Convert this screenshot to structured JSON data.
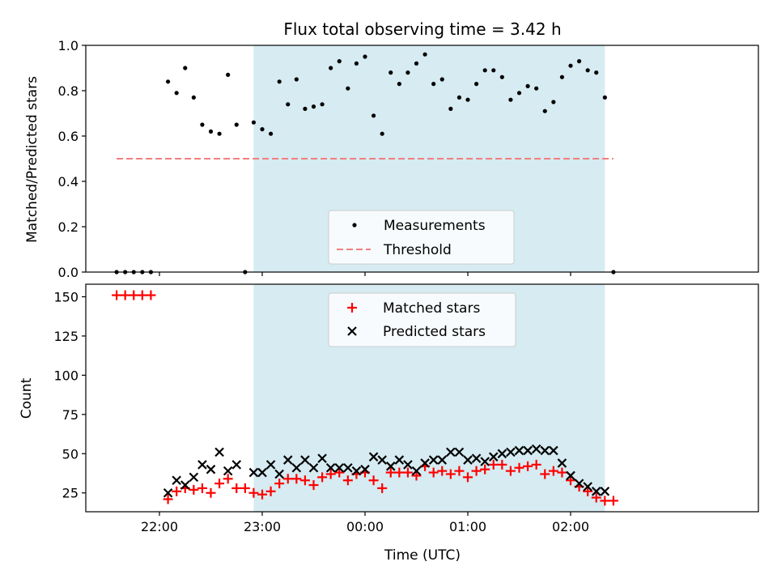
{
  "chart_data": [
    {
      "type": "scatter",
      "title": "Flux total observing time = 3.42 h",
      "xlabel": "",
      "ylabel": "Matched/Predicted stars",
      "ylim": [
        0,
        1.0
      ],
      "yticks": [
        "0.0",
        "0.2",
        "0.4",
        "0.6",
        "0.8",
        "1.0"
      ],
      "shaded_interval": [
        "22:55",
        "02:20"
      ],
      "shade_color": "#add8e6",
      "legend_position": "lower-center",
      "series": [
        {
          "name": "Measurements",
          "style": "black-dots",
          "color": "#000000",
          "points": [
            [
              "21:35",
              0.0
            ],
            [
              "21:40",
              0.0
            ],
            [
              "21:45",
              0.0
            ],
            [
              "21:50",
              0.0
            ],
            [
              "21:55",
              0.0
            ],
            [
              "22:05",
              0.84
            ],
            [
              "22:10",
              0.79
            ],
            [
              "22:15",
              0.9
            ],
            [
              "22:20",
              0.77
            ],
            [
              "22:25",
              0.65
            ],
            [
              "22:30",
              0.62
            ],
            [
              "22:35",
              0.61
            ],
            [
              "22:40",
              0.87
            ],
            [
              "22:45",
              0.65
            ],
            [
              "22:50",
              0.0
            ],
            [
              "22:55",
              0.66
            ],
            [
              "23:00",
              0.63
            ],
            [
              "23:05",
              0.61
            ],
            [
              "23:10",
              0.84
            ],
            [
              "23:15",
              0.74
            ],
            [
              "23:20",
              0.85
            ],
            [
              "23:25",
              0.72
            ],
            [
              "23:30",
              0.73
            ],
            [
              "23:35",
              0.74
            ],
            [
              "23:40",
              0.9
            ],
            [
              "23:45",
              0.93
            ],
            [
              "23:50",
              0.81
            ],
            [
              "23:55",
              0.92
            ],
            [
              "00:00",
              0.95
            ],
            [
              "00:05",
              0.69
            ],
            [
              "00:10",
              0.61
            ],
            [
              "00:15",
              0.88
            ],
            [
              "00:20",
              0.83
            ],
            [
              "00:25",
              0.88
            ],
            [
              "00:30",
              0.92
            ],
            [
              "00:35",
              0.96
            ],
            [
              "00:40",
              0.83
            ],
            [
              "00:45",
              0.85
            ],
            [
              "00:50",
              0.72
            ],
            [
              "00:55",
              0.77
            ],
            [
              "01:00",
              0.76
            ],
            [
              "01:05",
              0.83
            ],
            [
              "01:10",
              0.89
            ],
            [
              "01:15",
              0.89
            ],
            [
              "01:20",
              0.86
            ],
            [
              "01:25",
              0.76
            ],
            [
              "01:30",
              0.79
            ],
            [
              "01:35",
              0.82
            ],
            [
              "01:40",
              0.81
            ],
            [
              "01:45",
              0.71
            ],
            [
              "01:50",
              0.75
            ],
            [
              "01:55",
              0.86
            ],
            [
              "02:00",
              0.91
            ],
            [
              "02:05",
              0.93
            ],
            [
              "02:10",
              0.89
            ],
            [
              "02:15",
              0.88
            ],
            [
              "02:20",
              0.77
            ],
            [
              "02:25",
              0.0
            ]
          ]
        },
        {
          "name": "Threshold",
          "style": "dashed-line",
          "color": "#f08080",
          "points": [
            [
              "21:35",
              0.5
            ],
            [
              "02:25",
              0.5
            ]
          ]
        }
      ]
    },
    {
      "type": "scatter",
      "xlabel": "Time (UTC)",
      "ylabel": "Count",
      "ylim": [
        13,
        158
      ],
      "yticks": [
        "25",
        "50",
        "75",
        "100",
        "125",
        "150"
      ],
      "xticks": [
        "22:00",
        "23:00",
        "00:00",
        "01:00",
        "02:00"
      ],
      "shaded_interval": [
        "22:55",
        "02:20"
      ],
      "legend_position": "upper-center",
      "series": [
        {
          "name": "Matched stars",
          "style": "plus",
          "color": "#ff0000",
          "points": [
            [
              "21:35",
              151
            ],
            [
              "21:40",
              151
            ],
            [
              "21:45",
              151
            ],
            [
              "21:50",
              151
            ],
            [
              "21:55",
              151
            ],
            [
              "22:05",
              21
            ],
            [
              "22:10",
              26
            ],
            [
              "22:15",
              28
            ],
            [
              "22:20",
              27
            ],
            [
              "22:25",
              28
            ],
            [
              "22:30",
              25
            ],
            [
              "22:35",
              31
            ],
            [
              "22:40",
              34
            ],
            [
              "22:45",
              28
            ],
            [
              "22:50",
              28
            ],
            [
              "22:55",
              25
            ],
            [
              "23:00",
              24
            ],
            [
              "23:05",
              26
            ],
            [
              "23:10",
              31
            ],
            [
              "23:15",
              34
            ],
            [
              "23:20",
              34
            ],
            [
              "23:25",
              33
            ],
            [
              "23:30",
              30
            ],
            [
              "23:35",
              35
            ],
            [
              "23:40",
              37
            ],
            [
              "23:45",
              38
            ],
            [
              "23:50",
              33
            ],
            [
              "23:55",
              37
            ],
            [
              "00:00",
              38
            ],
            [
              "00:05",
              33
            ],
            [
              "00:10",
              28
            ],
            [
              "00:15",
              38
            ],
            [
              "00:20",
              38
            ],
            [
              "00:25",
              38
            ],
            [
              "00:30",
              36
            ],
            [
              "00:35",
              42
            ],
            [
              "00:40",
              38
            ],
            [
              "00:45",
              39
            ],
            [
              "00:50",
              37
            ],
            [
              "00:55",
              39
            ],
            [
              "01:00",
              35
            ],
            [
              "01:05",
              39
            ],
            [
              "01:10",
              40
            ],
            [
              "01:15",
              43
            ],
            [
              "01:20",
              43
            ],
            [
              "01:25",
              39
            ],
            [
              "01:30",
              41
            ],
            [
              "01:35",
              42
            ],
            [
              "01:40",
              43
            ],
            [
              "01:45",
              37
            ],
            [
              "01:50",
              39
            ],
            [
              "01:55",
              38
            ],
            [
              "02:00",
              33
            ],
            [
              "02:05",
              29
            ],
            [
              "02:10",
              26
            ],
            [
              "02:15",
              22
            ],
            [
              "02:20",
              20
            ],
            [
              "02:25",
              20
            ]
          ]
        },
        {
          "name": "Predicted stars",
          "style": "x",
          "color": "#000000",
          "points": [
            [
              "22:05",
              25
            ],
            [
              "22:10",
              33
            ],
            [
              "22:15",
              30
            ],
            [
              "22:20",
              35
            ],
            [
              "22:25",
              43
            ],
            [
              "22:30",
              40
            ],
            [
              "22:35",
              51
            ],
            [
              "22:40",
              39
            ],
            [
              "22:45",
              43
            ],
            [
              "22:55",
              38
            ],
            [
              "23:00",
              38
            ],
            [
              "23:05",
              43
            ],
            [
              "23:10",
              37
            ],
            [
              "23:15",
              46
            ],
            [
              "23:20",
              41
            ],
            [
              "23:25",
              46
            ],
            [
              "23:30",
              41
            ],
            [
              "23:35",
              47
            ],
            [
              "23:40",
              41
            ],
            [
              "23:45",
              41
            ],
            [
              "23:50",
              41
            ],
            [
              "23:55",
              39
            ],
            [
              "00:00",
              40
            ],
            [
              "00:05",
              48
            ],
            [
              "00:10",
              46
            ],
            [
              "00:15",
              42
            ],
            [
              "00:20",
              46
            ],
            [
              "00:25",
              43
            ],
            [
              "00:30",
              39
            ],
            [
              "00:35",
              44
            ],
            [
              "00:40",
              46
            ],
            [
              "00:45",
              46
            ],
            [
              "00:50",
              51
            ],
            [
              "00:55",
              51
            ],
            [
              "01:00",
              46
            ],
            [
              "01:05",
              47
            ],
            [
              "01:10",
              45
            ],
            [
              "01:15",
              48
            ],
            [
              "01:20",
              50
            ],
            [
              "01:25",
              51
            ],
            [
              "01:30",
              52
            ],
            [
              "01:35",
              52
            ],
            [
              "01:40",
              53
            ],
            [
              "01:45",
              52
            ],
            [
              "01:50",
              52
            ],
            [
              "01:55",
              44
            ],
            [
              "02:00",
              36
            ],
            [
              "02:05",
              31
            ],
            [
              "02:10",
              29
            ],
            [
              "02:15",
              26
            ],
            [
              "02:20",
              26
            ]
          ]
        }
      ]
    }
  ]
}
